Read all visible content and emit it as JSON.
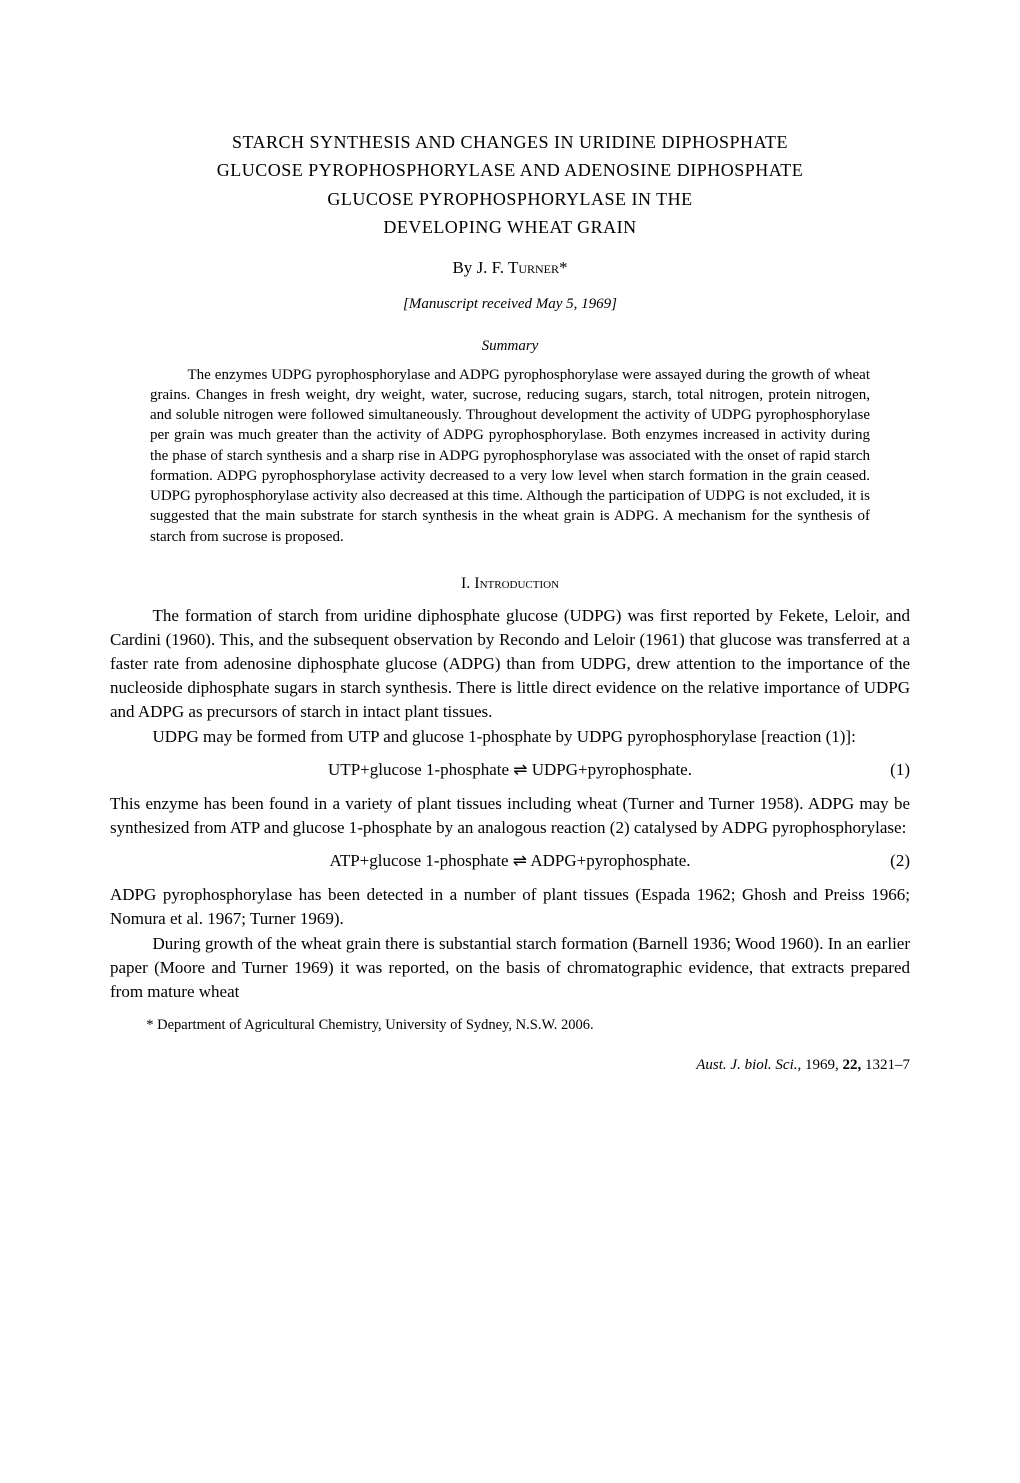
{
  "title": {
    "line1": "STARCH SYNTHESIS AND CHANGES IN URIDINE DIPHOSPHATE",
    "line2": "GLUCOSE PYROPHOSPHORYLASE AND ADENOSINE DIPHOSPHATE",
    "line3": "GLUCOSE PYROPHOSPHORYLASE IN THE",
    "line4": "DEVELOPING WHEAT GRAIN"
  },
  "byline": {
    "by": "By ",
    "author": "J. F. Turner*"
  },
  "manuscript": "[Manuscript received May 5, 1969]",
  "summary_head": "Summary",
  "summary_body": "The enzymes UDPG pyrophosphorylase and ADPG pyrophosphorylase were assayed during the growth of wheat grains. Changes in fresh weight, dry weight, water, sucrose, reducing sugars, starch, total nitrogen, protein nitrogen, and soluble nitrogen were followed simultaneously. Throughout development the activity of UDPG pyrophosphorylase per grain was much greater than the activity of ADPG pyrophosphorylase. Both enzymes increased in activity during the phase of starch synthesis and a sharp rise in ADPG pyrophosphorylase was associated with the onset of rapid starch formation. ADPG pyrophosphorylase activity decreased to a very low level when starch formation in the grain ceased. UDPG pyrophosphorylase activity also decreased at this time. Although the participation of UDPG is not excluded, it is suggested that the main substrate for starch synthesis in the wheat grain is ADPG. A mechanism for the synthesis of starch from sucrose is proposed.",
  "section1_head": "I. Introduction",
  "para1": "The formation of starch from uridine diphosphate glucose (UDPG) was first reported by Fekete, Leloir, and Cardini (1960). This, and the subsequent observation by Recondo and Leloir (1961) that glucose was transferred at a faster rate from adenosine diphosphate glucose (ADPG) than from UDPG, drew attention to the importance of the nucleoside diphosphate sugars in starch synthesis. There is little direct evidence on the relative importance of UDPG and ADPG as precursors of starch in intact plant tissues.",
  "para2": "UDPG may be formed from UTP and glucose 1-phosphate by UDPG pyrophosphorylase [reaction (1)]:",
  "eq1": "UTP+glucose 1-phosphate ⇌ UDPG+pyrophosphate.",
  "eq1_num": "(1)",
  "para3": "This enzyme has been found in a variety of plant tissues including wheat (Turner and Turner 1958). ADPG may be synthesized from ATP and glucose 1-phosphate by an analogous reaction (2) catalysed by ADPG pyrophosphorylase:",
  "eq2": "ATP+glucose 1-phosphate ⇌ ADPG+pyrophosphate.",
  "eq2_num": "(2)",
  "para4": "ADPG pyrophosphorylase has been detected in a number of plant tissues (Espada 1962; Ghosh and Preiss 1966; Nomura et al. 1967; Turner 1969).",
  "para5": "During growth of the wheat grain there is substantial starch formation (Barnell 1936; Wood 1960). In an earlier paper (Moore and Turner 1969) it was reported, on the basis of chromatographic evidence, that extracts prepared from mature wheat",
  "footnote": "* Department of Agricultural Chemistry, University of Sydney, N.S.W. 2006.",
  "journal": {
    "ital": "Aust. J. biol. Sci., ",
    "year": "1969, ",
    "vol": "22, ",
    "pages": "1321–7"
  }
}
